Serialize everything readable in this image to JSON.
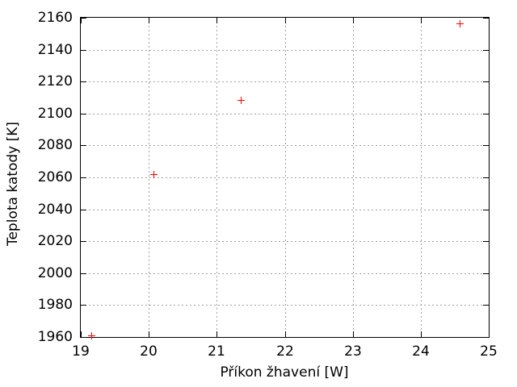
{
  "chart_data": {
    "type": "scatter",
    "xlabel": "Příkon žhavení [W]",
    "ylabel": "Teplota katody [K]",
    "xlim": [
      19,
      25
    ],
    "ylim": [
      1960,
      2160
    ],
    "xticks": [
      19,
      20,
      21,
      22,
      23,
      24,
      25
    ],
    "yticks": [
      1960,
      1980,
      2000,
      2020,
      2040,
      2060,
      2080,
      2100,
      2120,
      2140,
      2160
    ],
    "grid": true,
    "grid_style": "dotted",
    "legend_position": "none",
    "marker_shape": "plus",
    "marker_color": "#ff0000",
    "grid_color": "#a0a0a0",
    "axis_color": "#000000",
    "background_color": "#ffffff",
    "series": [
      {
        "points": [
          [
            19.16,
            1961
          ],
          [
            20.08,
            2062
          ],
          [
            21.36,
            2108
          ],
          [
            24.58,
            2156
          ]
        ]
      }
    ]
  }
}
